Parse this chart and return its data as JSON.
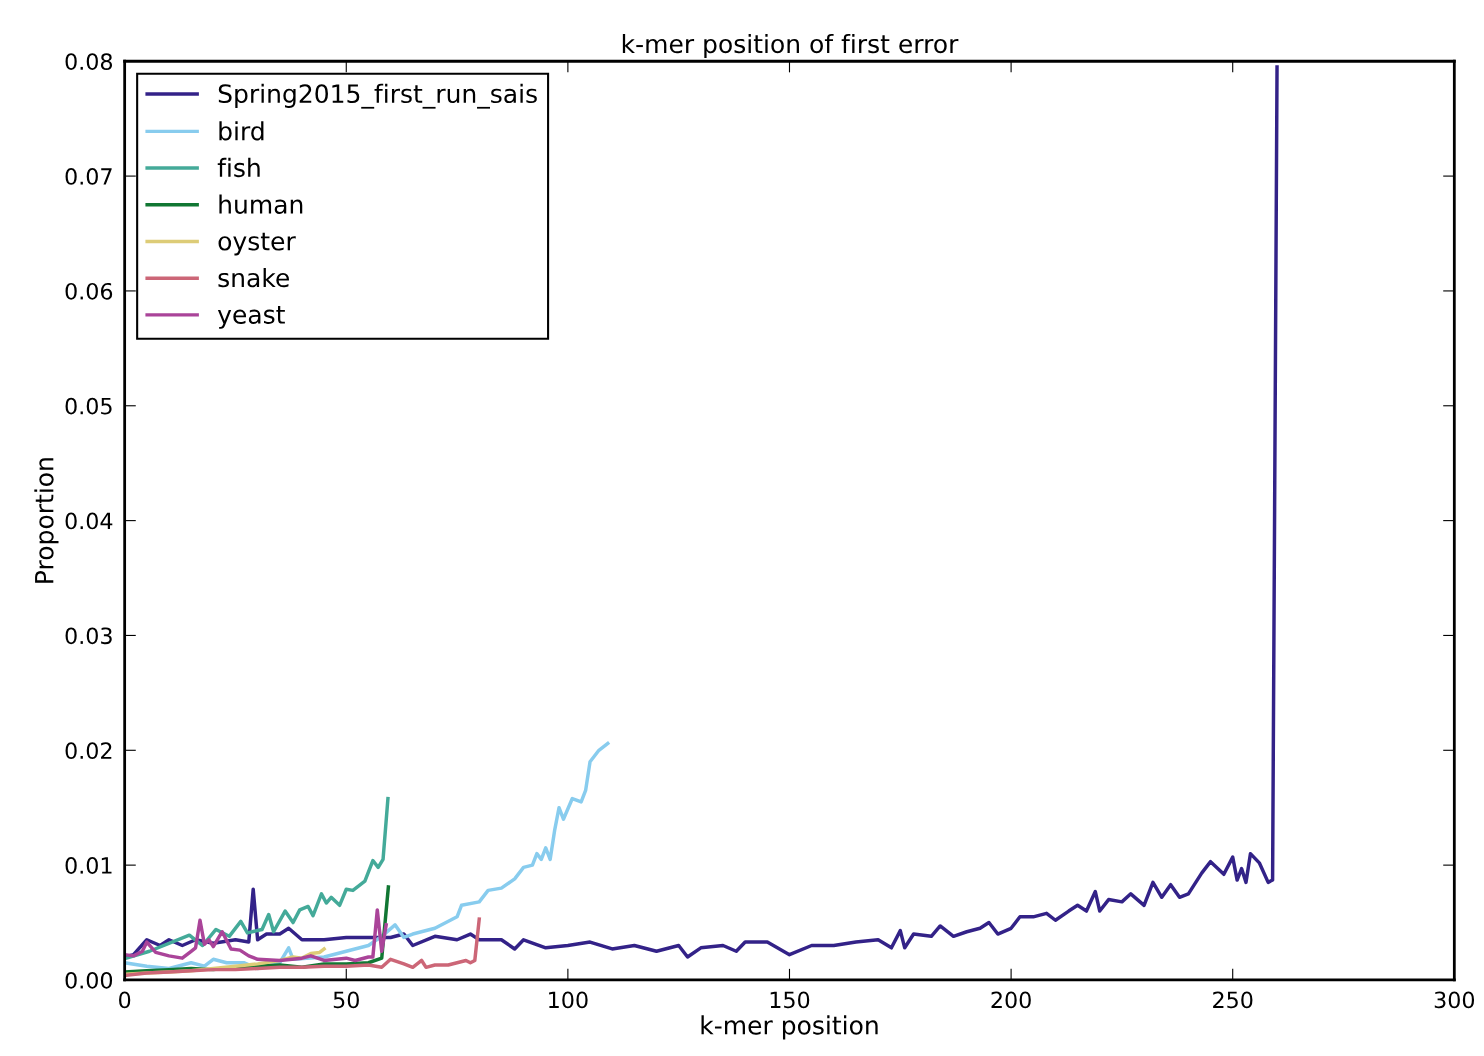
{
  "chart_data": {
    "type": "line",
    "title": "k-mer position of first error",
    "xlabel": "k-mer position",
    "ylabel": "Proportion",
    "xlim": [
      0,
      300
    ],
    "xticks": [
      0,
      50,
      100,
      150,
      200,
      250,
      300
    ],
    "ylim": [
      0,
      0.08
    ],
    "yticks": [
      {
        "value": 0,
        "label": "0.00"
      },
      {
        "value": 0.01,
        "label": "0.01"
      },
      {
        "value": 0.02,
        "label": "0.02"
      },
      {
        "value": 0.03,
        "label": "0.03"
      },
      {
        "value": 0.04,
        "label": "0.04"
      },
      {
        "value": 0.05,
        "label": "0.05"
      },
      {
        "value": 0.06,
        "label": "0.06"
      },
      {
        "value": 0.07,
        "label": "0.07"
      },
      {
        "value": 0.08,
        "label": "0.08"
      }
    ],
    "grid": false,
    "legend": "top left",
    "series": [
      {
        "name": "Spring2015_first_run_sais",
        "color": "#332288",
        "x": [
          0,
          2,
          5,
          8,
          10,
          13,
          16,
          20,
          25,
          28,
          29,
          30,
          32,
          35,
          37,
          40,
          45,
          50,
          55,
          60,
          63,
          65,
          70,
          75,
          78,
          80,
          85,
          88,
          90,
          95,
          100,
          105,
          110,
          115,
          120,
          125,
          127,
          130,
          135,
          138,
          140,
          145,
          150,
          155,
          160,
          165,
          170,
          173,
          175,
          176,
          178,
          182,
          184,
          187,
          190,
          193,
          195,
          197,
          200,
          202,
          205,
          208,
          210,
          213,
          215,
          217,
          219,
          220,
          222,
          225,
          227,
          230,
          232,
          234,
          236,
          238,
          240,
          243,
          245,
          248,
          250,
          251,
          252,
          253,
          254,
          256,
          258,
          259,
          260
        ],
        "values": [
          0.002,
          0.0022,
          0.0035,
          0.003,
          0.0035,
          0.003,
          0.0035,
          0.0032,
          0.0035,
          0.0033,
          0.0079,
          0.0035,
          0.004,
          0.004,
          0.0045,
          0.0035,
          0.0035,
          0.0037,
          0.0037,
          0.0037,
          0.004,
          0.003,
          0.0038,
          0.0035,
          0.004,
          0.0035,
          0.0035,
          0.0027,
          0.0035,
          0.0028,
          0.003,
          0.0033,
          0.0027,
          0.003,
          0.0025,
          0.003,
          0.002,
          0.0028,
          0.003,
          0.0025,
          0.0033,
          0.0033,
          0.0022,
          0.003,
          0.003,
          0.0033,
          0.0035,
          0.0028,
          0.0043,
          0.0028,
          0.004,
          0.0038,
          0.0047,
          0.0038,
          0.0042,
          0.0045,
          0.005,
          0.004,
          0.0045,
          0.0055,
          0.0055,
          0.0058,
          0.0052,
          0.006,
          0.0065,
          0.006,
          0.0077,
          0.006,
          0.007,
          0.0068,
          0.0075,
          0.0065,
          0.0085,
          0.0072,
          0.0083,
          0.0072,
          0.0075,
          0.0093,
          0.0103,
          0.0092,
          0.0107,
          0.0087,
          0.0097,
          0.0085,
          0.011,
          0.0102,
          0.0085,
          0.0087,
          0.0795
        ]
      },
      {
        "name": "bird",
        "color": "#88ccee",
        "x": [
          0,
          5,
          10,
          15,
          18,
          20,
          23,
          27,
          30,
          35,
          37,
          38,
          45,
          50,
          55,
          58,
          61,
          63,
          65,
          70,
          75,
          76,
          80,
          82,
          85,
          88,
          90,
          92,
          93,
          94,
          95,
          96,
          97,
          98,
          99,
          101,
          103,
          104,
          105,
          107,
          109
        ],
        "values": [
          0.0015,
          0.0012,
          0.001,
          0.0015,
          0.0012,
          0.0018,
          0.0015,
          0.0015,
          0.001,
          0.0015,
          0.0028,
          0.0018,
          0.002,
          0.0025,
          0.003,
          0.0038,
          0.0048,
          0.0037,
          0.004,
          0.0045,
          0.0055,
          0.0065,
          0.0068,
          0.0078,
          0.008,
          0.0088,
          0.0098,
          0.01,
          0.011,
          0.0105,
          0.0115,
          0.0105,
          0.013,
          0.015,
          0.014,
          0.0158,
          0.0155,
          0.0165,
          0.019,
          0.02,
          0.0206
        ]
      },
      {
        "name": "fish",
        "color": "#44aa99",
        "x": [
          0.4,
          5.6,
          14.6,
          17.6,
          20.6,
          23.6,
          26.2,
          27.7,
          31,
          32.5,
          33.6,
          36.2,
          38,
          39.5,
          41.4,
          42.5,
          44.4,
          45.5,
          46.6,
          48.5,
          50,
          51.5,
          54.2,
          56,
          57.2,
          58.3,
          59.4
        ],
        "values": [
          0.0019,
          0.0025,
          0.0039,
          0.003,
          0.0044,
          0.0038,
          0.0051,
          0.0041,
          0.0044,
          0.0057,
          0.0042,
          0.006,
          0.005,
          0.0061,
          0.0064,
          0.0056,
          0.0075,
          0.0067,
          0.0072,
          0.0065,
          0.0079,
          0.0078,
          0.0086,
          0.0104,
          0.0098,
          0.0105,
          0.0158
        ]
      },
      {
        "name": "human",
        "color": "#117733",
        "x": [
          0,
          5,
          10,
          15,
          20,
          25,
          30,
          35,
          40,
          45,
          50,
          55,
          58,
          59.5
        ],
        "values": [
          0.0007,
          0.0008,
          0.0009,
          0.001,
          0.0009,
          0.0011,
          0.0012,
          0.0013,
          0.0011,
          0.0014,
          0.0014,
          0.0015,
          0.0019,
          0.0081
        ]
      },
      {
        "name": "oyster",
        "color": "#ddcc77",
        "x": [
          0,
          5,
          10,
          15,
          20,
          25,
          30,
          35,
          38,
          40,
          42,
          44,
          45
        ],
        "values": [
          0.0005,
          0.0006,
          0.0007,
          0.0008,
          0.001,
          0.0012,
          0.0014,
          0.0017,
          0.002,
          0.0019,
          0.0023,
          0.0024,
          0.0027
        ]
      },
      {
        "name": "snake",
        "color": "#cc6677",
        "x": [
          0,
          5,
          10,
          15,
          20,
          25,
          30,
          35,
          40,
          45,
          50,
          55,
          58,
          60,
          63,
          65,
          67,
          68,
          70,
          73,
          75,
          77,
          78,
          79,
          80
        ],
        "values": [
          0.0004,
          0.0006,
          0.0007,
          0.0008,
          0.0009,
          0.0009,
          0.001,
          0.0011,
          0.0011,
          0.0012,
          0.0012,
          0.0013,
          0.0011,
          0.0018,
          0.0014,
          0.0011,
          0.0017,
          0.0011,
          0.0013,
          0.0013,
          0.0015,
          0.0017,
          0.0015,
          0.0017,
          0.0053
        ]
      },
      {
        "name": "yeast",
        "color": "#aa4499",
        "x": [
          0,
          2,
          4,
          5,
          7,
          10,
          13,
          15,
          16,
          17,
          18,
          19,
          20,
          22,
          24,
          26,
          28,
          30,
          35,
          40,
          42,
          45,
          50,
          52,
          55,
          56,
          57,
          58,
          59
        ],
        "values": [
          0.0022,
          0.0021,
          0.0025,
          0.0033,
          0.0024,
          0.0021,
          0.0019,
          0.0025,
          0.0028,
          0.0052,
          0.0031,
          0.0035,
          0.0029,
          0.0042,
          0.0027,
          0.0026,
          0.0021,
          0.0018,
          0.0017,
          0.0019,
          0.0021,
          0.0017,
          0.0019,
          0.0017,
          0.002,
          0.002,
          0.0061,
          0.0025,
          0.0048
        ]
      }
    ]
  }
}
